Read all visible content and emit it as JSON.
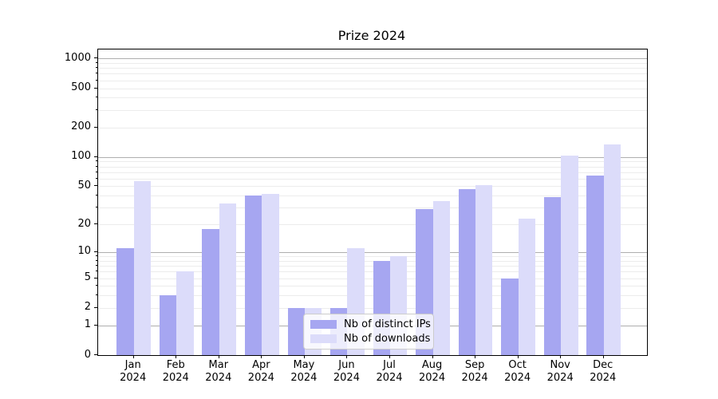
{
  "title": "Prize 2024",
  "chart_data": {
    "type": "bar",
    "title": "Prize 2024",
    "categories": [
      "Jan 2024",
      "Feb 2024",
      "Mar 2024",
      "Apr 2024",
      "May 2024",
      "Jun 2024",
      "Jul 2024",
      "Aug 2024",
      "Sep 2024",
      "Oct 2024",
      "Nov 2024",
      "Dec 2024"
    ],
    "months": [
      "Jan",
      "Feb",
      "Mar",
      "Apr",
      "May",
      "Jun",
      "Jul",
      "Aug",
      "Sep",
      "Oct",
      "Nov",
      "Dec"
    ],
    "year_label": "2024",
    "series": [
      {
        "name": "Nb of distinct IPs",
        "color": "#a6a6f1",
        "values": [
          11,
          3,
          18,
          40,
          2,
          2,
          8,
          29,
          47,
          5,
          39,
          65
        ]
      },
      {
        "name": "Nb of downloads",
        "color": "#dcdcfa",
        "values": [
          56,
          6,
          33,
          42,
          2,
          11,
          9,
          35,
          51,
          23,
          103,
          134
        ]
      }
    ],
    "xlabel": "",
    "ylabel": "",
    "yscale": "log1p",
    "ylim": [
      0,
      1233
    ],
    "y_ticks": [
      0,
      1,
      2,
      5,
      10,
      20,
      50,
      100,
      200,
      500,
      1000
    ],
    "grid": {
      "orientation": "horizontal",
      "major_values": [
        1,
        10,
        100,
        1000
      ],
      "major_color": "#aeaeae",
      "minor_color": "#ececec"
    },
    "legend_position": "inside bottom-center"
  },
  "legend": {
    "items": [
      {
        "label": "Nb of distinct IPs",
        "color": "#a6a6f1"
      },
      {
        "label": "Nb of downloads",
        "color": "#dcdcfa"
      }
    ]
  }
}
